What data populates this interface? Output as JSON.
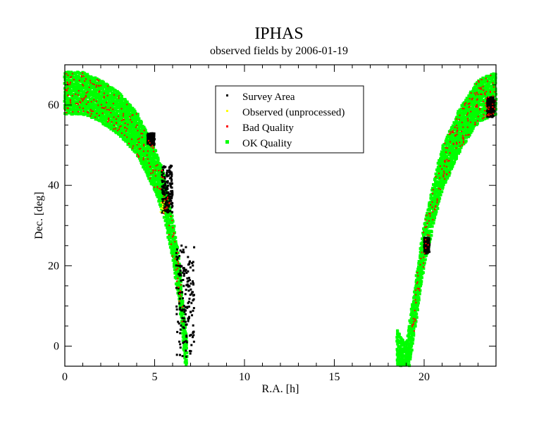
{
  "chart_data": {
    "type": "scatter",
    "title": "IPHAS",
    "subtitle": "observed fields by 2006-01-19",
    "xlabel": "R.A. [h]",
    "ylabel": "Dec. [deg]",
    "xlim": [
      0,
      24
    ],
    "ylim": [
      -5,
      70
    ],
    "x_major_ticks": [
      0,
      5,
      10,
      15,
      20
    ],
    "y_major_ticks": [
      0,
      20,
      40,
      60
    ],
    "x_tick_labels": [
      "0",
      "5",
      "10",
      "15",
      "20"
    ],
    "y_tick_labels": [
      "0",
      "20",
      "40",
      "60"
    ],
    "grid": false,
    "legend_position": "top-center",
    "series": [
      {
        "name": "Survey Area",
        "color": "#000000",
        "marker": "dot",
        "regions": [
          {
            "ra_range": [
              4.6,
              5.0
            ],
            "dec_range": [
              50,
              53
            ]
          },
          {
            "ra_range": [
              5.4,
              6.0
            ],
            "dec_range": [
              33,
              45
            ]
          },
          {
            "ra_range": [
              6.2,
              7.2
            ],
            "dec_range": [
              -3,
              25
            ]
          },
          {
            "ra_range": [
              23.5,
              23.9
            ],
            "dec_range": [
              57,
              62
            ]
          },
          {
            "ra_range": [
              20.0,
              20.3
            ],
            "dec_range": [
              23,
              27
            ]
          }
        ]
      },
      {
        "name": "Observed (unprocessed)",
        "color": "#ffff00",
        "marker": "dot",
        "regions": [
          {
            "ra_range": [
              5.3,
              5.6
            ],
            "dec_range": [
              33,
              36
            ]
          }
        ]
      },
      {
        "name": "Bad Quality",
        "color": "#ff0000",
        "marker": "dot",
        "regions": [
          {
            "ra_range": [
              0.0,
              6.4
            ],
            "dec_range": [
              20,
              67
            ]
          },
          {
            "ra_range": [
              18.6,
              24.0
            ],
            "dec_range": [
              5,
              67
            ]
          }
        ]
      },
      {
        "name": "OK Quality",
        "color": "#00ff00",
        "marker": "dot",
        "band": {
          "description": "galactic plane strip",
          "left_arc": [
            [
              0.0,
              63
            ],
            [
              1.0,
              63
            ],
            [
              2.0,
              61
            ],
            [
              3.0,
              58
            ],
            [
              4.0,
              53
            ],
            [
              5.0,
              44
            ],
            [
              5.5,
              38
            ],
            [
              6.0,
              27
            ],
            [
              6.4,
              15
            ],
            [
              6.7,
              0
            ],
            [
              6.8,
              -4
            ]
          ],
          "right_arc": [
            [
              18.5,
              -1
            ],
            [
              19.0,
              -5
            ],
            [
              19.5,
              10
            ],
            [
              20.0,
              25
            ],
            [
              20.5,
              35
            ],
            [
              21.0,
              44
            ],
            [
              22.0,
              54
            ],
            [
              23.0,
              61
            ],
            [
              24.0,
              63
            ]
          ],
          "half_width_deg": 5
        }
      }
    ]
  },
  "legend": {
    "items": [
      {
        "label": "Survey Area",
        "color": "#000000"
      },
      {
        "label": "Observed (unprocessed)",
        "color": "#ffff00"
      },
      {
        "label": "Bad Quality",
        "color": "#ff0000"
      },
      {
        "label": "OK Quality",
        "color": "#00ff00"
      }
    ]
  }
}
